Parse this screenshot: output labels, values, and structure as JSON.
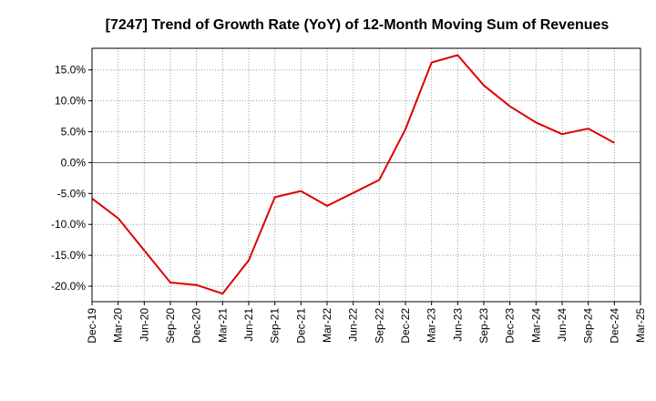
{
  "chart_data": {
    "type": "line",
    "title": "[7247]  Trend of Growth Rate (YoY) of 12-Month Moving Sum of Revenues",
    "xlabel": "",
    "ylabel": "",
    "x": [
      "Dec-19",
      "Mar-20",
      "Jun-20",
      "Sep-20",
      "Dec-20",
      "Mar-21",
      "Jun-21",
      "Sep-21",
      "Dec-21",
      "Mar-22",
      "Jun-22",
      "Sep-22",
      "Dec-22",
      "Mar-23",
      "Jun-23",
      "Sep-23",
      "Dec-23",
      "Mar-24",
      "Jun-24",
      "Sep-24",
      "Dec-24",
      "Mar-25"
    ],
    "ylim": [
      -22.5,
      18.5
    ],
    "yticks": [
      15,
      10,
      5,
      0,
      -5,
      -10,
      -15,
      -20
    ],
    "ytick_labels": [
      "15.0%",
      "10.0%",
      "5.0%",
      "0.0%",
      "-5.0%",
      "-10.0%",
      "-15.0%",
      "-20.0%"
    ],
    "grid": true,
    "series": [
      {
        "color": "#dd0000",
        "values": [
          -5.8,
          -9.0,
          -14.2,
          -19.4,
          -19.8,
          -21.2,
          -15.8,
          -5.6,
          -4.6,
          -7.0,
          -4.9,
          -2.8,
          5.4,
          16.2,
          17.4,
          12.5,
          9.1,
          6.5,
          4.6,
          5.5,
          3.2,
          null
        ]
      }
    ]
  }
}
